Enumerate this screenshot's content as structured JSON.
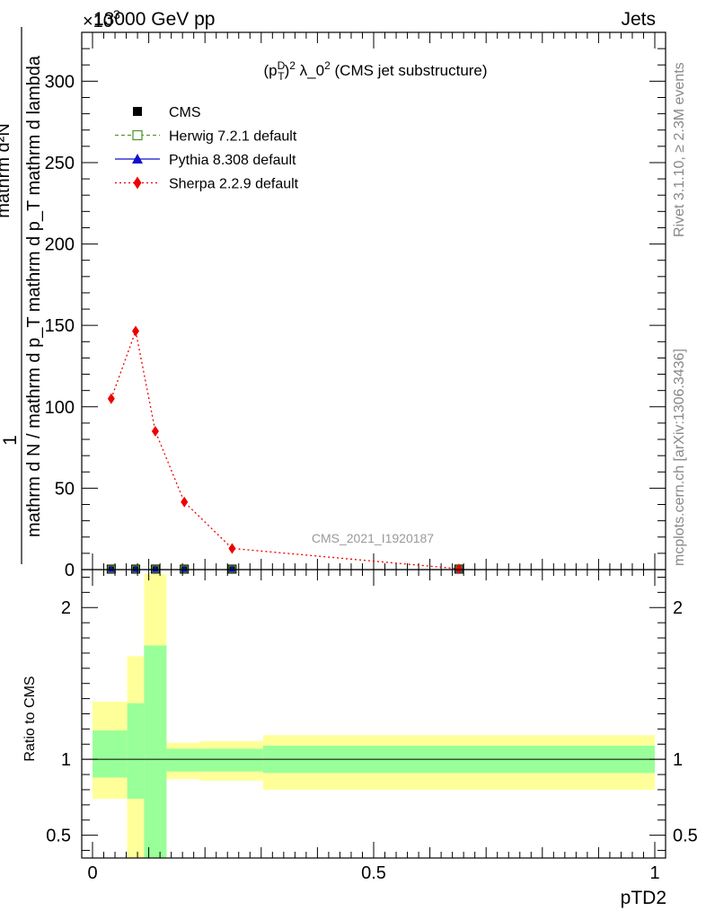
{
  "header": {
    "left": "13000 GeV pp",
    "right": "Jets",
    "exponent": "×10",
    "exponent_power": "3"
  },
  "side_labels": {
    "rivet": "Rivet 3.1.10, ≥ 2.3M events",
    "mcplots": "mcplots.cern.ch [arXiv:1306.3436]"
  },
  "watermark": "CMS_2021_I1920187",
  "colors": {
    "cms": "#000000",
    "herwig": "#559933",
    "pythia": "#1010cc",
    "sherpa": "#ee0000",
    "band_inner": "#99ff99",
    "band_outer": "#ffff99"
  },
  "chart_data": [
    {
      "type": "line",
      "panel": "main",
      "title": "(p_T^D)^2 λ_0^2 (CMS jet substructure)",
      "title_parts": {
        "a": "(p",
        "sup": "D",
        "sub": "T",
        "b": ")",
        "c": "2",
        "d": " λ_0",
        "e": "2",
        "f": " (CMS jet substructure)"
      },
      "ylabel": {
        "numerator": "1",
        "denominator": "mathrm d N / mathrm d p_T mathrm d p_T mathrm d lambda",
        "top": "mathrm d²N"
      },
      "xlim": [
        0,
        1
      ],
      "ylim": [
        0,
        330
      ],
      "y_scale_note": "×10^3",
      "yticks": [
        0,
        50,
        100,
        150,
        200,
        250,
        300
      ],
      "legend_position": "top-left",
      "series": [
        {
          "name": "CMS",
          "marker": "square",
          "x": [
            0.0333,
            0.0767,
            0.1117,
            0.1633,
            0.2483,
            0.6517
          ],
          "y": [
            0.3,
            0.3,
            0.3,
            0.3,
            0.3,
            0.3
          ]
        },
        {
          "name": "Herwig 7.2.1 default",
          "marker": "open-square",
          "x": [
            0.0333,
            0.0767,
            0.1117,
            0.1633,
            0.2483,
            0.6517
          ],
          "y": [
            0.3,
            0.3,
            0.3,
            0.3,
            0.3,
            0.3
          ]
        },
        {
          "name": "Pythia 8.308 default",
          "marker": "triangle",
          "x": [
            0.0333,
            0.0767,
            0.1117,
            0.1633,
            0.2483,
            0.6517
          ],
          "y": [
            0.3,
            0.3,
            0.3,
            0.3,
            0.3,
            0.3
          ]
        },
        {
          "name": "Sherpa 2.2.9 default",
          "marker": "diamond",
          "x": [
            0.0333,
            0.0767,
            0.1117,
            0.1633,
            0.2483,
            0.6517
          ],
          "y": [
            105,
            146.5,
            85,
            41.5,
            13,
            0.5
          ]
        }
      ]
    },
    {
      "type": "area",
      "panel": "ratio",
      "ylabel": "Ratio to CMS",
      "xlabel": "pTD2",
      "xlim": [
        0,
        1
      ],
      "ylim": [
        0.35,
        2.25
      ],
      "xticks": [
        0,
        0.5,
        1
      ],
      "xtick_labels": [
        "0",
        "0.5",
        "1"
      ],
      "yticks": [
        0.5,
        1,
        2
      ],
      "ytick_labels": [
        "0.5",
        "1",
        "2"
      ],
      "bins": [
        {
          "x0": 0.0,
          "x1": 0.0617,
          "inner": [
            0.88,
            1.19
          ],
          "outer": [
            0.74,
            1.38
          ]
        },
        {
          "x0": 0.0617,
          "x1": 0.0917,
          "inner": [
            0.74,
            1.37
          ],
          "outer": [
            0.35,
            1.68
          ]
        },
        {
          "x0": 0.0917,
          "x1": 0.1317,
          "inner": [
            0.35,
            1.75
          ],
          "outer": [
            0.35,
            2.22
          ]
        },
        {
          "x0": 0.1317,
          "x1": 0.1917,
          "inner": [
            0.92,
            1.07
          ],
          "outer": [
            0.87,
            1.11
          ]
        },
        {
          "x0": 0.1917,
          "x1": 0.3033,
          "inner": [
            0.92,
            1.07
          ],
          "outer": [
            0.86,
            1.12
          ]
        },
        {
          "x0": 0.3033,
          "x1": 1.0,
          "inner": [
            0.91,
            1.09
          ],
          "outer": [
            0.8,
            1.16
          ]
        }
      ]
    }
  ]
}
